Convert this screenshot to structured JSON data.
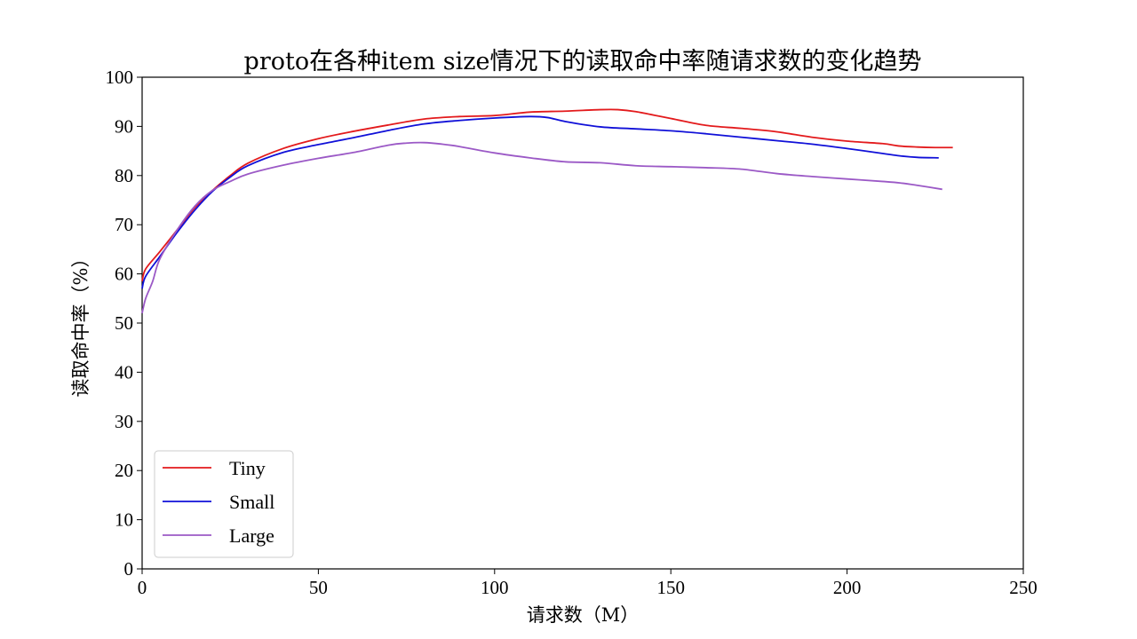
{
  "chart_data": {
    "type": "line",
    "title": "proto在各种item size情况下的读取命中率随请求数的变化趋势",
    "xlabel": "请求数（M）",
    "ylabel": "读取命中率（%）",
    "xlim": [
      0,
      250
    ],
    "ylim": [
      0,
      100
    ],
    "xticks": [
      0,
      50,
      100,
      150,
      200,
      250
    ],
    "yticks": [
      0,
      10,
      20,
      30,
      40,
      50,
      60,
      70,
      80,
      90,
      100
    ],
    "grid": false,
    "legend_position": "lower-left",
    "series": [
      {
        "name": "Tiny",
        "color": "#e31a1c",
        "x": [
          0,
          1,
          5,
          10,
          15,
          20,
          25,
          30,
          40,
          50,
          60,
          70,
          80,
          90,
          100,
          110,
          120,
          130,
          135,
          140,
          150,
          160,
          170,
          180,
          190,
          200,
          210,
          215,
          220,
          225,
          230
        ],
        "y": [
          58.5,
          61,
          64.5,
          69,
          73.5,
          77,
          80,
          82.5,
          85.5,
          87.5,
          89,
          90.3,
          91.5,
          92,
          92.2,
          92.9,
          93.1,
          93.4,
          93.4,
          93,
          91.6,
          90.2,
          89.6,
          88.9,
          87.8,
          87,
          86.5,
          86,
          85.8,
          85.7,
          85.7
        ]
      },
      {
        "name": "Small",
        "color": "#1010d8",
        "x": [
          0,
          1,
          5,
          10,
          15,
          20,
          25,
          30,
          40,
          50,
          60,
          70,
          80,
          90,
          100,
          110,
          115,
          120,
          130,
          140,
          150,
          160,
          170,
          180,
          190,
          200,
          210,
          215,
          220,
          226
        ],
        "y": [
          57,
          59.5,
          63.5,
          68.5,
          73,
          76.8,
          79.7,
          82,
          84.7,
          86.3,
          87.7,
          89.2,
          90.5,
          91.2,
          91.7,
          92,
          91.8,
          91,
          89.9,
          89.5,
          89.1,
          88.5,
          87.8,
          87.1,
          86.4,
          85.5,
          84.5,
          84,
          83.7,
          83.6
        ]
      },
      {
        "name": "Large",
        "color": "#9b59c6",
        "x": [
          0,
          1,
          3,
          5,
          10,
          15,
          20,
          25,
          30,
          40,
          50,
          60,
          70,
          75,
          80,
          85,
          90,
          100,
          110,
          120,
          130,
          140,
          150,
          160,
          170,
          180,
          190,
          200,
          210,
          215,
          220,
          227
        ],
        "y": [
          52,
          55,
          58.5,
          63,
          69,
          73.8,
          77,
          78.8,
          80.3,
          82.1,
          83.5,
          84.7,
          86.2,
          86.6,
          86.7,
          86.4,
          85.9,
          84.6,
          83.6,
          82.8,
          82.6,
          82,
          81.8,
          81.6,
          81.3,
          80.4,
          79.8,
          79.3,
          78.8,
          78.5,
          78,
          77.2
        ]
      }
    ]
  }
}
